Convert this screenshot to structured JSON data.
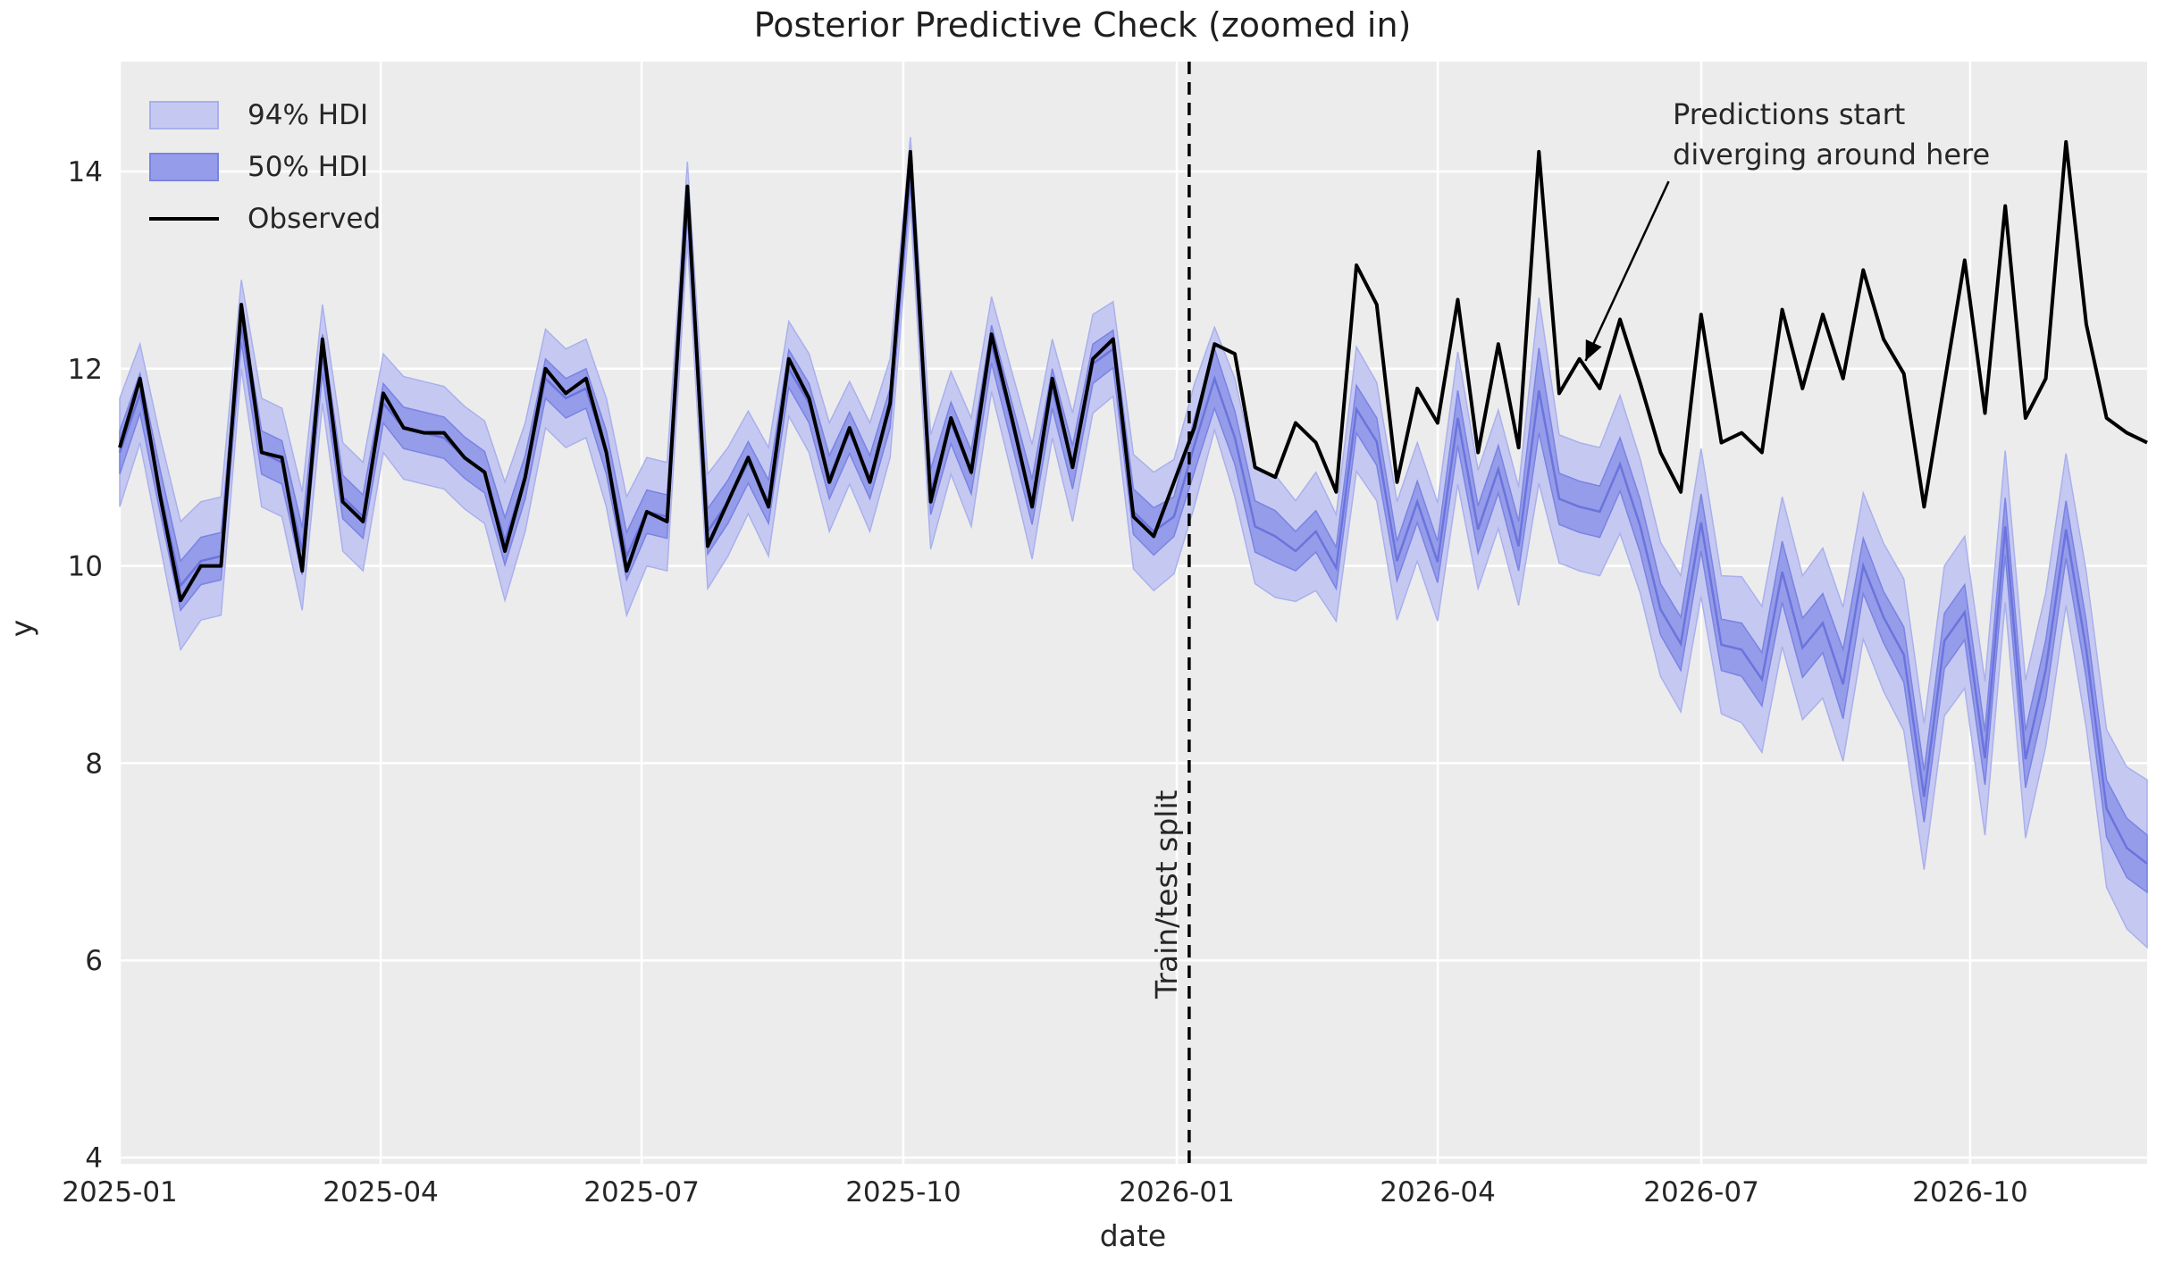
{
  "figure": {
    "title": "Posterior Predictive Check (zoomed in)",
    "background": "#ffffff"
  },
  "axes": {
    "xlabel": "date",
    "ylabel": "y",
    "background": "#ececec",
    "grid_color": "#ffffff",
    "text_color": "#262626"
  },
  "legend": {
    "items": [
      {
        "label": "94% HDI",
        "type": "band",
        "color": "#c5c9f1",
        "edge": "#aab0ec"
      },
      {
        "label": "50% HDI",
        "type": "band",
        "color": "#959ce9",
        "edge": "#7b83e3"
      },
      {
        "label": "Observed",
        "type": "line",
        "color": "#000000"
      }
    ]
  },
  "split": {
    "label": "Train/test split",
    "week": 52.75,
    "line_color": "#000000"
  },
  "annotation": {
    "line1": "Predictions start",
    "line2": "diverging around here",
    "arrow_from_week": 76.4,
    "arrow_from_value": 13.9,
    "arrow_tip_week": 72.3,
    "arrow_tip_value": 12.08
  },
  "chart_data": {
    "type": "line",
    "description": "Weekly series; x in week index, week 0 = 2025-01-05, week 100 = 2026-12-06",
    "x_start_date": "2025-01-05",
    "x_step_days": 7,
    "ylim": [
      3.95,
      15.1
    ],
    "grid": true,
    "legend_position": "upper left",
    "y_ticks": [
      4,
      6,
      8,
      10,
      12,
      14
    ],
    "x_ticks": [
      {
        "label": "2025-01",
        "week": 0
      },
      {
        "label": "2025-04",
        "week": 12.87
      },
      {
        "label": "2025-07",
        "week": 25.74
      },
      {
        "label": "2025-10",
        "week": 38.65
      },
      {
        "label": "2026-01",
        "week": 52.14
      },
      {
        "label": "2026-04",
        "week": 65.01
      },
      {
        "label": "2026-07",
        "week": 78.01
      },
      {
        "label": "2026-10",
        "week": 91.27
      }
    ],
    "series": [
      {
        "name": "Observed",
        "color": "#000000",
        "values": [
          11.2,
          11.9,
          10.7,
          9.65,
          10.0,
          10.0,
          12.65,
          11.15,
          11.1,
          9.95,
          12.3,
          10.65,
          10.45,
          11.75,
          11.4,
          11.35,
          11.35,
          11.1,
          10.95,
          10.15,
          10.9,
          12.0,
          11.75,
          11.9,
          11.15,
          9.95,
          10.55,
          10.45,
          13.85,
          10.2,
          10.65,
          11.1,
          10.6,
          12.1,
          11.7,
          10.85,
          11.4,
          10.85,
          11.65,
          14.2,
          10.65,
          11.5,
          10.95,
          12.35,
          11.5,
          10.6,
          11.9,
          11.0,
          12.1,
          12.3,
          10.5,
          10.3,
          10.85,
          11.4,
          12.25,
          12.15,
          11.0,
          10.9,
          11.45,
          11.25,
          10.75,
          13.05,
          12.65,
          10.85,
          11.8,
          11.45,
          12.7,
          11.15,
          12.25,
          11.2,
          14.2,
          11.75,
          12.1,
          11.8,
          12.5,
          11.85,
          11.15,
          10.75,
          12.55,
          11.25,
          11.35,
          11.15,
          12.6,
          11.8,
          12.55,
          11.9,
          13.0,
          12.3,
          11.95,
          10.6,
          11.85,
          13.1,
          11.55,
          13.65,
          11.5,
          11.9,
          14.3,
          12.45,
          11.5,
          11.35,
          11.25
        ]
      },
      {
        "name": "Posterior mean",
        "color": "#6b74dc",
        "values": [
          11.15,
          11.75,
          10.75,
          9.8,
          10.05,
          10.1,
          12.45,
          11.15,
          11.05,
          10.15,
          12.15,
          10.7,
          10.5,
          11.65,
          11.4,
          11.35,
          11.3,
          11.1,
          10.95,
          10.25,
          10.9,
          11.9,
          11.7,
          11.8,
          11.15,
          10.1,
          10.55,
          10.5,
          13.7,
          10.35,
          10.65,
          11.05,
          10.65,
          12.0,
          11.65,
          10.9,
          11.35,
          10.9,
          11.6,
          14.0,
          10.75,
          11.45,
          10.95,
          12.25,
          11.45,
          10.65,
          11.8,
          11.0,
          12.05,
          12.2,
          10.55,
          10.35,
          10.5,
          11.22,
          11.9,
          11.3,
          10.4,
          10.3,
          10.15,
          10.35,
          9.98,
          11.59,
          11.26,
          10.05,
          10.65,
          10.04,
          11.5,
          10.37,
          10.98,
          10.2,
          11.78,
          10.68,
          10.6,
          10.55,
          11.03,
          10.4,
          9.56,
          9.21,
          10.44,
          9.2,
          9.15,
          8.85,
          9.94,
          9.17,
          9.42,
          8.8,
          10.0,
          9.48,
          9.1,
          7.66,
          9.24,
          9.53,
          8.05,
          10.4,
          8.04,
          8.95,
          10.37,
          9.15,
          7.54,
          7.14,
          6.98
        ]
      }
    ],
    "bands": [
      {
        "name": "94% HDI",
        "around": "Posterior mean",
        "fill": "#c5c9f1",
        "edge": "#aab0ec",
        "half_width": [
          0.55,
          0.5,
          0.55,
          0.65,
          0.6,
          0.6,
          0.45,
          0.55,
          0.55,
          0.6,
          0.5,
          0.55,
          0.55,
          0.5,
          0.52,
          0.52,
          0.52,
          0.52,
          0.52,
          0.6,
          0.55,
          0.5,
          0.5,
          0.5,
          0.55,
          0.6,
          0.55,
          0.55,
          0.4,
          0.58,
          0.55,
          0.52,
          0.55,
          0.48,
          0.5,
          0.55,
          0.52,
          0.55,
          0.5,
          0.35,
          0.58,
          0.52,
          0.55,
          0.48,
          0.52,
          0.58,
          0.5,
          0.55,
          0.5,
          0.48,
          0.58,
          0.6,
          0.58,
          0.62,
          0.52,
          0.6,
          0.58,
          0.62,
          0.51,
          0.6,
          0.54,
          0.63,
          0.6,
          0.6,
          0.6,
          0.6,
          0.67,
          0.6,
          0.6,
          0.6,
          0.94,
          0.65,
          0.65,
          0.65,
          0.7,
          0.68,
          0.68,
          0.69,
          0.75,
          0.7,
          0.74,
          0.74,
          0.76,
          0.73,
          0.76,
          0.78,
          0.74,
          0.75,
          0.77,
          0.74,
          0.76,
          0.77,
          0.78,
          0.77,
          0.8,
          0.78,
          0.77,
          0.79,
          0.8,
          0.82,
          0.85
        ]
      },
      {
        "name": "50% HDI",
        "around": "Posterior mean",
        "fill": "#959ce9",
        "edge": "#7b83e3",
        "half_width": [
          0.22,
          0.2,
          0.22,
          0.25,
          0.24,
          0.24,
          0.18,
          0.22,
          0.22,
          0.24,
          0.2,
          0.22,
          0.22,
          0.2,
          0.21,
          0.21,
          0.21,
          0.21,
          0.21,
          0.24,
          0.22,
          0.2,
          0.2,
          0.2,
          0.22,
          0.24,
          0.22,
          0.22,
          0.16,
          0.23,
          0.22,
          0.21,
          0.22,
          0.19,
          0.2,
          0.22,
          0.21,
          0.22,
          0.2,
          0.14,
          0.23,
          0.21,
          0.22,
          0.19,
          0.21,
          0.23,
          0.2,
          0.22,
          0.2,
          0.19,
          0.23,
          0.24,
          0.2,
          0.27,
          0.3,
          0.27,
          0.26,
          0.26,
          0.2,
          0.21,
          0.21,
          0.24,
          0.24,
          0.2,
          0.21,
          0.21,
          0.28,
          0.24,
          0.24,
          0.25,
          0.43,
          0.26,
          0.26,
          0.26,
          0.27,
          0.27,
          0.26,
          0.27,
          0.29,
          0.26,
          0.27,
          0.27,
          0.31,
          0.3,
          0.3,
          0.35,
          0.28,
          0.26,
          0.28,
          0.26,
          0.28,
          0.28,
          0.27,
          0.29,
          0.29,
          0.3,
          0.29,
          0.29,
          0.29,
          0.3,
          0.29
        ]
      }
    ]
  }
}
